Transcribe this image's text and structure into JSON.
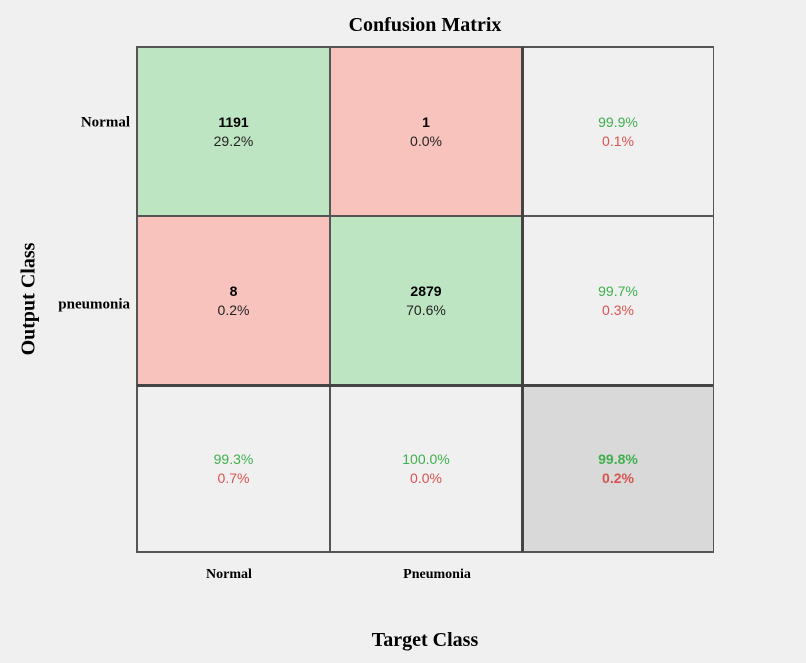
{
  "chart_data": {
    "type": "heatmap",
    "title": "Confusion Matrix",
    "xlabel": "Target Class",
    "ylabel": "Output Class",
    "row_labels": [
      "Normal",
      "pneumonia"
    ],
    "col_labels": [
      "Normal",
      "Pneumonia"
    ],
    "matrix": [
      [
        {
          "count": "1191",
          "percent": "29.2%"
        },
        {
          "count": "1",
          "percent": "0.0%"
        }
      ],
      [
        {
          "count": "8",
          "percent": "0.2%"
        },
        {
          "count": "2879",
          "percent": "70.6%"
        }
      ]
    ],
    "row_summary": [
      {
        "correct": "99.9%",
        "error": "0.1%"
      },
      {
        "correct": "99.7%",
        "error": "0.3%"
      }
    ],
    "col_summary": [
      {
        "correct": "99.3%",
        "error": "0.7%"
      },
      {
        "correct": "100.0%",
        "error": "0.0%"
      }
    ],
    "overall": {
      "correct": "99.8%",
      "error": "0.2%"
    }
  },
  "colors": {
    "correct_cell": "#bde5c1",
    "error_cell": "#f8c3bd",
    "summary_cell": "#f0f0f0",
    "overall_cell": "#d9d9d9",
    "correct_text": "#3fb04c",
    "error_text": "#d9534f"
  }
}
